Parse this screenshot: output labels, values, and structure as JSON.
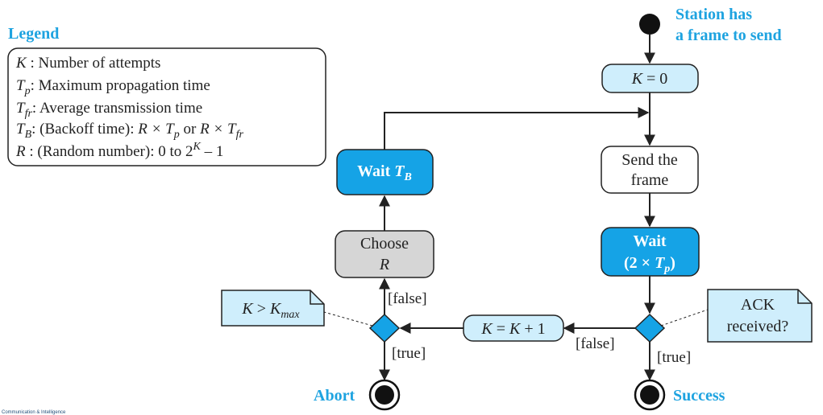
{
  "colors": {
    "accent": "#1ea3e0",
    "wait_fill": "#15a3e6",
    "light_fill": "#cfeefc",
    "gray_fill": "#d6d6d6",
    "stroke": "#222222"
  },
  "legend": {
    "title": "Legend",
    "items": [
      {
        "symbol": "K",
        "sub": "",
        "text": " : Number of attempts"
      },
      {
        "symbol": "T",
        "sub": "p",
        "text": ": Maximum propagation time"
      },
      {
        "symbol": "T",
        "sub": "fr",
        "text": ": Average transmission time"
      },
      {
        "symbol": "T",
        "sub": "B",
        "text": ": (Backoff time): ",
        "formula": [
          "R × T",
          "p",
          " or ",
          "R × T",
          "fr"
        ]
      },
      {
        "symbol": "R",
        "sub": "",
        "text": " : (Random number): 0 to 2",
        "sup": "K",
        "tail": " – 1"
      }
    ]
  },
  "start": {
    "line1": "Station has",
    "line2": "a frame to send"
  },
  "nodes": {
    "k_init": {
      "var": "K",
      "rest": " = 0"
    },
    "send_frame": {
      "line1": "Send the",
      "line2": "frame"
    },
    "wait_2tp": {
      "line1": "Wait",
      "line2_pre": "(2 × ",
      "line2_var": "T",
      "line2_sub": "p",
      "line2_post": ")"
    },
    "k_inc": {
      "var": "K",
      "mid": " = ",
      "var2": "K",
      "rest": " + 1"
    },
    "choose_r": {
      "line1": "Choose",
      "line2": "R"
    },
    "wait_tb": {
      "label": "Wait ",
      "var": "T",
      "sub": "B"
    }
  },
  "notes": {
    "ack": {
      "line1": "ACK",
      "line2": "received?"
    },
    "kmax": {
      "var": "K",
      "op": " > ",
      "var2": "K",
      "sub": "max"
    }
  },
  "labels": {
    "false_left": "[false]",
    "true_left": "[true]",
    "false_right": "[false]",
    "true_right": "[true]"
  },
  "ends": {
    "abort": "Abort",
    "success": "Success"
  },
  "footer": "Communication & Intelligence"
}
